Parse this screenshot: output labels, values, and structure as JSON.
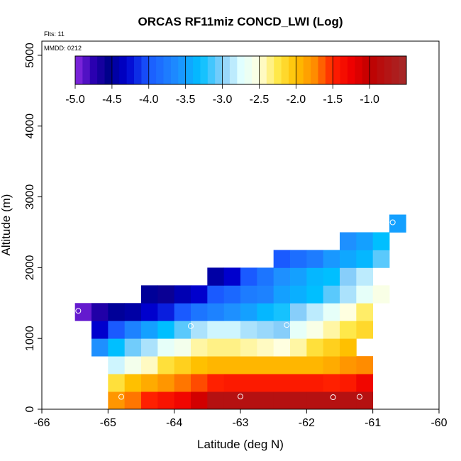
{
  "chart_data": {
    "type": "heatmap",
    "title": "ORCAS RF11miz CONCD_LWI (Log)",
    "annotations": [
      "Flts: 11",
      "MMDD: 0212"
    ],
    "xlabel": "Latitude (deg N)",
    "ylabel": "Altitude (m)",
    "xlim": [
      -66,
      -60
    ],
    "ylim": [
      0,
      5200
    ],
    "xticks": [
      -66,
      -65,
      -64,
      -63,
      -62,
      -61,
      -60
    ],
    "yticks": [
      0,
      1000,
      2000,
      3000,
      4000,
      5000
    ],
    "bin_width_deg": 0.25,
    "bin_height_m": 250,
    "colorbar": {
      "min": -5.0,
      "max": -0.5,
      "ticks": [
        -5.0,
        -4.5,
        -4.0,
        -3.5,
        -3.0,
        -2.5,
        -2.0,
        -1.5,
        -1.0
      ],
      "tick_labels": [
        "-5.0",
        "-4.5",
        "-4.0",
        "-3.5",
        "-3.0",
        "-2.5",
        "-2.0",
        "-1.5",
        "-1.0"
      ],
      "stops": [
        [
          -5.0,
          "#8b2be2"
        ],
        [
          -4.75,
          "#2a00b0"
        ],
        [
          -4.55,
          "#00008b"
        ],
        [
          -4.3,
          "#0000cd"
        ],
        [
          -4.0,
          "#1a5aff"
        ],
        [
          -3.6,
          "#1e90ff"
        ],
        [
          -3.3,
          "#00bfff"
        ],
        [
          -3.0,
          "#87cefa"
        ],
        [
          -2.75,
          "#e0ffff"
        ],
        [
          -2.5,
          "#ffffe0"
        ],
        [
          -2.25,
          "#ffe84a"
        ],
        [
          -2.0,
          "#ffc000"
        ],
        [
          -1.75,
          "#ff8c00"
        ],
        [
          -1.5,
          "#ff2000"
        ],
        [
          -1.25,
          "#ee0000"
        ],
        [
          -1.0,
          "#c00000"
        ],
        [
          -0.5,
          "#a52a2a"
        ]
      ]
    },
    "rows": [
      {
        "alt_m": 0,
        "lat_start": -65.0,
        "values": [
          -1.8,
          -1.7,
          -1.5,
          -1.4,
          -1.3,
          -1.1,
          -0.8,
          -0.8,
          -0.8,
          -0.8,
          -0.8,
          -0.8,
          -0.8,
          -0.8,
          -0.8,
          -0.8
        ]
      },
      {
        "alt_m": 250,
        "lat_start": -65.0,
        "values": [
          -2.2,
          -2.0,
          -1.9,
          -1.8,
          -1.7,
          -1.6,
          -1.5,
          -1.45,
          -1.45,
          -1.45,
          -1.45,
          -1.45,
          -1.45,
          -1.5,
          -1.45,
          -1.3
        ]
      },
      {
        "alt_m": 500,
        "lat_start": -65.0,
        "values": [
          -2.8,
          -2.6,
          -2.45,
          -2.2,
          -2.1,
          -2.0,
          -1.95,
          -1.95,
          -1.95,
          -1.95,
          -1.95,
          -1.95,
          -1.95,
          -1.9,
          -1.8,
          -1.75
        ]
      },
      {
        "alt_m": 750,
        "lat_start": -65.25,
        "values": [
          -3.6,
          -3.3,
          -3.05,
          -2.9,
          -2.7,
          -2.6,
          -2.4,
          -2.35,
          -2.35,
          -2.4,
          -2.45,
          -2.5,
          -2.4,
          -2.2,
          -2.1,
          -2.0
        ]
      },
      {
        "alt_m": 1000,
        "lat_start": -65.25,
        "values": [
          -4.3,
          -4.0,
          -3.7,
          -3.5,
          -3.3,
          -3.1,
          -2.9,
          -2.8,
          -2.8,
          -2.9,
          -2.95,
          -3.0,
          -2.7,
          -2.55,
          -2.4,
          -2.25,
          -2.15
        ]
      },
      {
        "alt_m": 1250,
        "lat_start": -65.5,
        "values": [
          -4.9,
          -4.7,
          -4.5,
          -4.45,
          -4.3,
          -4.2,
          -4.0,
          -3.8,
          -3.7,
          -3.6,
          -3.5,
          -3.35,
          -3.25,
          -3.0,
          -2.85,
          -2.7,
          -2.5,
          -2.3
        ]
      },
      {
        "alt_m": 1500,
        "lat_start": -64.5,
        "values": [
          -4.5,
          -4.6,
          -4.4,
          -4.3,
          -4.0,
          -3.9,
          -3.75,
          -3.7,
          -3.5,
          -3.4,
          -3.3,
          -3.1,
          -2.9,
          -2.7,
          -2.55
        ]
      },
      {
        "alt_m": 1750,
        "lat_start": -63.5,
        "values": [
          -4.45,
          -4.3,
          -4.0,
          -3.8,
          -3.6,
          -3.5,
          -3.35,
          -3.3,
          -3.0,
          -2.85
        ]
      },
      {
        "alt_m": 2000,
        "lat_start": -62.5,
        "values": [
          -4.0,
          -3.85,
          -3.75,
          -3.55,
          -3.45,
          -3.35,
          -3.1
        ]
      },
      {
        "alt_m": 2250,
        "lat_start": -61.5,
        "values": [
          -3.6,
          -3.5,
          -3.3
        ]
      },
      {
        "alt_m": 2500,
        "lat_start": -60.75,
        "values": [
          -3.5
        ]
      }
    ],
    "markers": [
      {
        "lat": -65.45,
        "alt_m": 1390
      },
      {
        "lat": -64.8,
        "alt_m": 175
      },
      {
        "lat": -63.75,
        "alt_m": 1175
      },
      {
        "lat": -63.0,
        "alt_m": 180
      },
      {
        "lat": -62.3,
        "alt_m": 1190
      },
      {
        "lat": -61.6,
        "alt_m": 170
      },
      {
        "lat": -61.2,
        "alt_m": 175
      },
      {
        "lat": -60.7,
        "alt_m": 2640
      }
    ]
  }
}
